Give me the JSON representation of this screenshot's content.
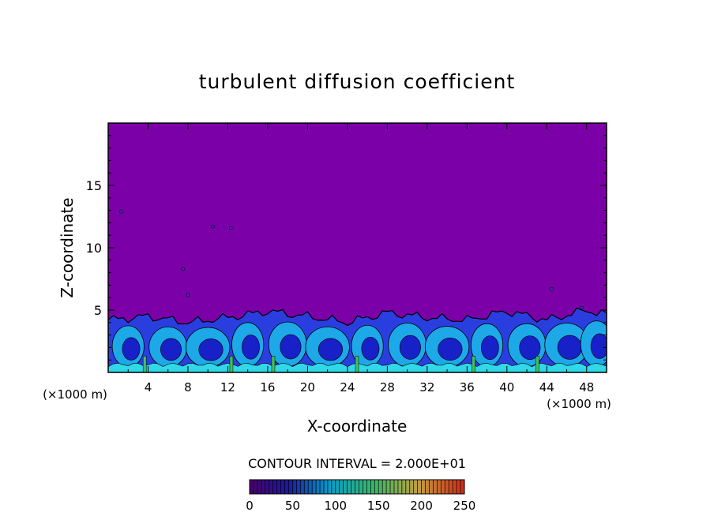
{
  "chart_data": {
    "type": "heatmap",
    "title": "turbulent diffusion coefficient",
    "xlabel": "X-coordinate",
    "ylabel": "Z-coordinate",
    "x_unit_left": "(×1000 m)",
    "x_unit_right": "(×1000 m)",
    "x_ticks": [
      "4",
      "8",
      "12",
      "16",
      "20",
      "24",
      "28",
      "32",
      "36",
      "40",
      "44",
      "48"
    ],
    "y_ticks": [
      "5",
      "10",
      "15"
    ],
    "xlim": [
      0,
      50
    ],
    "ylim": [
      0,
      20
    ],
    "contour_interval_text": "CONTOUR INTERVAL = 2.000E+01",
    "colorbar": {
      "range": [
        0,
        250
      ],
      "tick_labels": [
        "0",
        "50",
        "100",
        "150",
        "200",
        "250"
      ],
      "colors": [
        "#7a00a8",
        "#1d1fd6",
        "#00bfe0",
        "#40d070",
        "#c0d040",
        "#ff2a00"
      ]
    },
    "background_value_color": "#7b00a7",
    "boundary_layer": {
      "top_km_estimates": [
        {
          "x": 0,
          "z": 4.2
        },
        {
          "x": 4,
          "z": 4.5
        },
        {
          "x": 8,
          "z": 4.0
        },
        {
          "x": 12,
          "z": 4.4
        },
        {
          "x": 16,
          "z": 4.9
        },
        {
          "x": 20,
          "z": 4.5
        },
        {
          "x": 24,
          "z": 4.0
        },
        {
          "x": 28,
          "z": 4.8
        },
        {
          "x": 32,
          "z": 4.4
        },
        {
          "x": 36,
          "z": 4.2
        },
        {
          "x": 40,
          "z": 4.9
        },
        {
          "x": 44,
          "z": 4.2
        },
        {
          "x": 48,
          "z": 5.0
        },
        {
          "x": 50,
          "z": 4.6
        }
      ]
    }
  }
}
